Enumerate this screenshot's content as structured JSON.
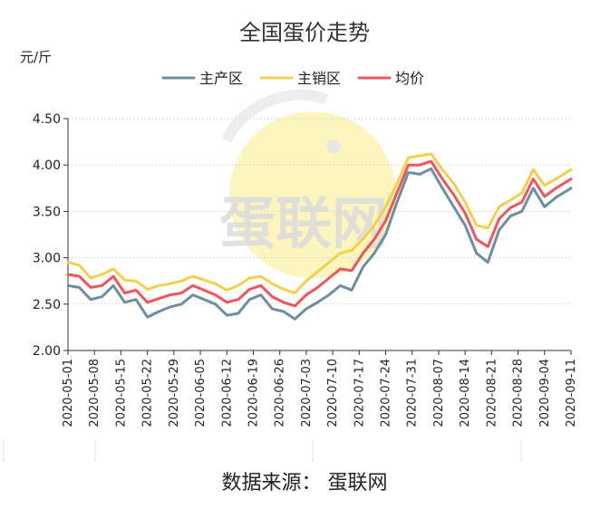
{
  "source_note": "数据来源：  蛋联网",
  "watermark": "蛋联网",
  "colors": {
    "producing": "#6e8fa0",
    "selling": "#f2d14a",
    "average": "#f2545b",
    "axis": "#333333",
    "grid": "#d9d9d9",
    "watermark_yellow": "#fbf2a8",
    "watermark_gray": "#e6e6e6"
  },
  "chart_data": {
    "type": "line",
    "title": "全国蛋价走势",
    "ylabel": "元/斤",
    "xlabel": "",
    "ylim": [
      2.0,
      4.5
    ],
    "yticks": [
      "2.00",
      "2.50",
      "3.00",
      "3.50",
      "4.00",
      "4.50"
    ],
    "grid": true,
    "legend_position": "top-center",
    "xtick_labels": [
      "2020-05-01",
      "2020-05-08",
      "2020-05-15",
      "2020-05-22",
      "2020-05-29",
      "2020-06-05",
      "2020-06-12",
      "2020-06-19",
      "2020-06-26",
      "2020-07-03",
      "2020-07-10",
      "2020-07-17",
      "2020-07-24",
      "2020-07-31",
      "2020-08-07",
      "2020-08-14",
      "2020-08-21",
      "2020-08-28",
      "2020-09-04",
      "2020-09-11"
    ],
    "x": [
      "2020-05-01",
      "2020-05-04",
      "2020-05-07",
      "2020-05-10",
      "2020-05-13",
      "2020-05-16",
      "2020-05-19",
      "2020-05-22",
      "2020-05-25",
      "2020-05-28",
      "2020-05-31",
      "2020-06-03",
      "2020-06-06",
      "2020-06-09",
      "2020-06-12",
      "2020-06-15",
      "2020-06-18",
      "2020-06-21",
      "2020-06-24",
      "2020-06-27",
      "2020-06-30",
      "2020-07-03",
      "2020-07-06",
      "2020-07-09",
      "2020-07-12",
      "2020-07-15",
      "2020-07-18",
      "2020-07-21",
      "2020-07-24",
      "2020-07-27",
      "2020-07-30",
      "2020-08-02",
      "2020-08-05",
      "2020-08-08",
      "2020-08-11",
      "2020-08-14",
      "2020-08-17",
      "2020-08-20",
      "2020-08-23",
      "2020-08-26",
      "2020-08-29",
      "2020-09-01",
      "2020-09-04",
      "2020-09-07",
      "2020-09-11"
    ],
    "series": [
      {
        "name": "主产区",
        "color_key": "producing",
        "values": [
          2.7,
          2.68,
          2.55,
          2.58,
          2.7,
          2.52,
          2.55,
          2.36,
          2.42,
          2.47,
          2.5,
          2.6,
          2.55,
          2.5,
          2.38,
          2.4,
          2.55,
          2.6,
          2.45,
          2.42,
          2.34,
          2.45,
          2.52,
          2.6,
          2.7,
          2.65,
          2.9,
          3.05,
          3.25,
          3.6,
          3.92,
          3.9,
          3.96,
          3.75,
          3.55,
          3.35,
          3.05,
          2.95,
          3.3,
          3.45,
          3.5,
          3.75,
          3.55,
          3.65,
          3.75
        ]
      },
      {
        "name": "主销区",
        "color_key": "selling",
        "values": [
          2.95,
          2.92,
          2.78,
          2.82,
          2.88,
          2.76,
          2.75,
          2.66,
          2.7,
          2.72,
          2.75,
          2.8,
          2.76,
          2.72,
          2.65,
          2.7,
          2.78,
          2.8,
          2.72,
          2.66,
          2.62,
          2.75,
          2.85,
          2.95,
          3.05,
          3.08,
          3.2,
          3.35,
          3.55,
          3.8,
          4.08,
          4.1,
          4.12,
          3.95,
          3.8,
          3.6,
          3.35,
          3.32,
          3.55,
          3.62,
          3.7,
          3.95,
          3.78,
          3.85,
          3.95
        ]
      },
      {
        "name": "均价",
        "color_key": "average",
        "values": [
          2.82,
          2.8,
          2.68,
          2.7,
          2.8,
          2.62,
          2.65,
          2.52,
          2.56,
          2.6,
          2.62,
          2.7,
          2.65,
          2.6,
          2.52,
          2.55,
          2.66,
          2.7,
          2.58,
          2.52,
          2.48,
          2.6,
          2.68,
          2.78,
          2.88,
          2.86,
          3.05,
          3.2,
          3.4,
          3.7,
          4.0,
          4.0,
          4.04,
          3.85,
          3.68,
          3.48,
          3.2,
          3.12,
          3.42,
          3.54,
          3.6,
          3.85,
          3.66,
          3.75,
          3.85
        ]
      }
    ]
  }
}
